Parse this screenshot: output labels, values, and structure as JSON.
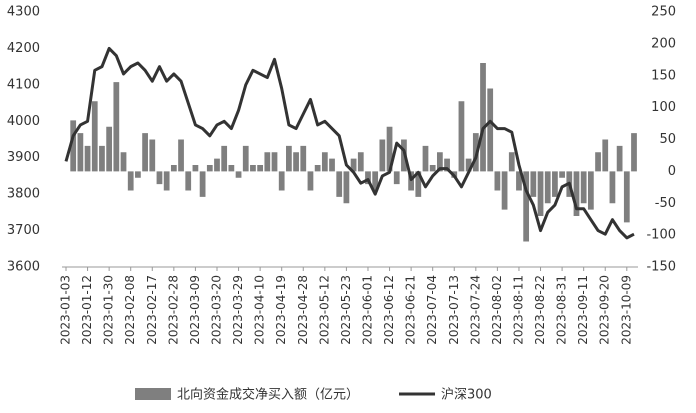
{
  "chart_data": {
    "type": "combo",
    "categories": [
      "2023-01-03",
      null,
      null,
      "2023-01-12",
      null,
      null,
      "2023-01-30",
      null,
      null,
      "2023-02-08",
      null,
      null,
      "2023-02-17",
      null,
      null,
      "2023-02-28",
      null,
      null,
      "2023-03-09",
      null,
      null,
      "2023-03-20",
      null,
      null,
      "2023-03-29",
      null,
      null,
      "2023-04-10",
      null,
      null,
      "2023-04-19",
      null,
      null,
      "2023-04-28",
      null,
      null,
      "2023-05-12",
      null,
      null,
      "2023-05-23",
      null,
      null,
      "2023-06-01",
      null,
      null,
      "2023-06-12",
      null,
      null,
      "2023-06-21",
      null,
      null,
      "2023-07-04",
      null,
      null,
      "2023-07-13",
      null,
      null,
      "2023-07-24",
      null,
      null,
      "2023-08-02",
      null,
      null,
      "2023-08-11",
      null,
      null,
      "2023-08-22",
      null,
      null,
      "2023-08-31",
      null,
      null,
      "2023-09-11",
      null,
      null,
      "2023-09-20",
      null,
      null,
      "2023-10-09",
      null
    ],
    "series": [
      {
        "name": "北向资金成交净买入额（亿元）",
        "type": "bar",
        "axis": "y2",
        "color": "#7f7f7f",
        "values": [
          0,
          80,
          60,
          40,
          110,
          40,
          70,
          140,
          30,
          -30,
          -10,
          60,
          50,
          -20,
          -30,
          10,
          50,
          -30,
          10,
          -40,
          10,
          20,
          40,
          10,
          -10,
          40,
          10,
          10,
          30,
          30,
          -30,
          40,
          30,
          40,
          -30,
          10,
          30,
          20,
          -40,
          -50,
          20,
          30,
          -20,
          -30,
          50,
          70,
          -20,
          50,
          -30,
          -40,
          40,
          10,
          30,
          20,
          -10,
          110,
          20,
          60,
          170,
          130,
          -30,
          -60,
          30,
          -30,
          -110,
          -40,
          -70,
          -50,
          -40,
          -10,
          -40,
          -70,
          -50,
          -60,
          30,
          50,
          -50,
          40,
          -80,
          60
        ]
      },
      {
        "name": "沪深300",
        "type": "line",
        "color": "#333333",
        "values": [
          3890,
          3960,
          3990,
          4000,
          4140,
          4150,
          4200,
          4180,
          4130,
          4150,
          4160,
          4140,
          4110,
          4150,
          4110,
          4130,
          4110,
          4050,
          3990,
          3980,
          3960,
          3990,
          4000,
          3980,
          4030,
          4100,
          4140,
          4130,
          4120,
          4170,
          4090,
          3990,
          3980,
          4020,
          4060,
          3990,
          4000,
          3980,
          3960,
          3880,
          3860,
          3830,
          3840,
          3800,
          3850,
          3860,
          3940,
          3920,
          3840,
          3860,
          3820,
          3850,
          3870,
          3870,
          3850,
          3820,
          3860,
          3900,
          3980,
          4000,
          3980,
          3980,
          3970,
          3880,
          3810,
          3770,
          3700,
          3750,
          3770,
          3820,
          3830,
          3760,
          3760,
          3730,
          3700,
          3690,
          3730,
          3700,
          3680,
          3690
        ]
      }
    ],
    "ylim": [
      3600,
      4300
    ],
    "yticks": [
      3600,
      3700,
      3800,
      3900,
      4000,
      4100,
      4200,
      4300
    ],
    "y2lim": [
      -150,
      250
    ],
    "y2ticks": [
      -150,
      -100,
      -50,
      0,
      50,
      100,
      150,
      200,
      250
    ],
    "grid": false
  }
}
